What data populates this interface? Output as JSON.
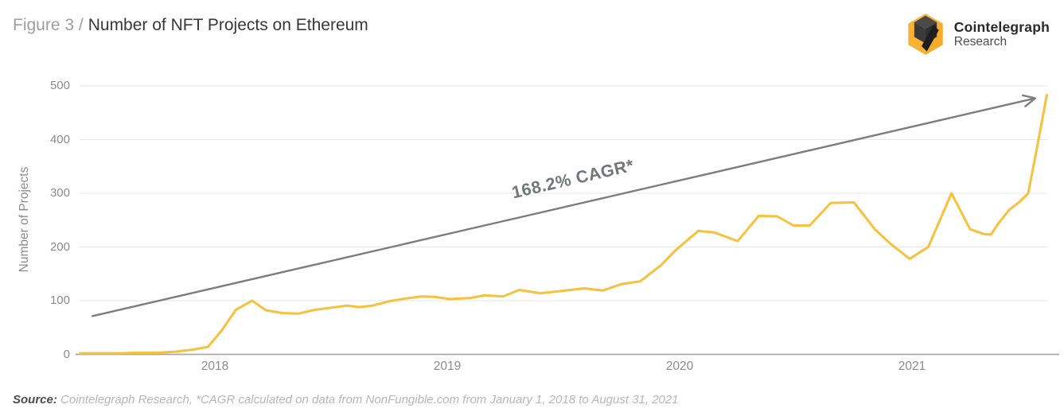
{
  "header": {
    "figure_label": "Figure 3 /",
    "title": "Number of NFT Projects on Ethereum",
    "logo": {
      "brand": "Cointelegraph",
      "sub": "Research"
    }
  },
  "chart_data": {
    "type": "line",
    "title": "Number of NFT Projects on Ethereum",
    "xlabel": "",
    "ylabel": "Number of Projects",
    "ylim": [
      0,
      500
    ],
    "y_ticks": [
      0,
      100,
      200,
      300,
      400,
      500
    ],
    "x_ticks": [
      2018,
      2019,
      2020,
      2021
    ],
    "grid": true,
    "legend": "none",
    "colors": {
      "grid": "#e7e7e7",
      "axis": "#a8a8a8",
      "tick_text": "#8b8b8b"
    },
    "series": [
      {
        "name": "Number of NFT Projects on Ethereum",
        "color": "#F6C13D",
        "points": [
          [
            2017.42,
            2
          ],
          [
            2017.5,
            2
          ],
          [
            2017.58,
            2
          ],
          [
            2017.66,
            3
          ],
          [
            2017.75,
            3
          ],
          [
            2017.83,
            5
          ],
          [
            2017.91,
            9
          ],
          [
            2017.97,
            14
          ],
          [
            2018.03,
            45
          ],
          [
            2018.09,
            83
          ],
          [
            2018.16,
            100
          ],
          [
            2018.22,
            82
          ],
          [
            2018.29,
            77
          ],
          [
            2018.36,
            76
          ],
          [
            2018.43,
            83
          ],
          [
            2018.5,
            87
          ],
          [
            2018.57,
            91
          ],
          [
            2018.62,
            88
          ],
          [
            2018.68,
            91
          ],
          [
            2018.75,
            99
          ],
          [
            2018.82,
            104
          ],
          [
            2018.89,
            108
          ],
          [
            2018.95,
            107
          ],
          [
            2019.01,
            103
          ],
          [
            2019.1,
            105
          ],
          [
            2019.16,
            110
          ],
          [
            2019.24,
            108
          ],
          [
            2019.31,
            120
          ],
          [
            2019.4,
            114
          ],
          [
            2019.47,
            117
          ],
          [
            2019.59,
            123
          ],
          [
            2019.67,
            119
          ],
          [
            2019.75,
            131
          ],
          [
            2019.83,
            136
          ],
          [
            2019.92,
            166
          ],
          [
            2019.98,
            193
          ],
          [
            2020.08,
            230
          ],
          [
            2020.15,
            227
          ],
          [
            2020.25,
            211
          ],
          [
            2020.34,
            258
          ],
          [
            2020.42,
            257
          ],
          [
            2020.49,
            240
          ],
          [
            2020.56,
            240
          ],
          [
            2020.65,
            282
          ],
          [
            2020.75,
            283
          ],
          [
            2020.84,
            233
          ],
          [
            2020.91,
            205
          ],
          [
            2020.99,
            178
          ],
          [
            2021.07,
            200
          ],
          [
            2021.17,
            300
          ],
          [
            2021.25,
            233
          ],
          [
            2021.31,
            224
          ],
          [
            2021.34,
            223
          ],
          [
            2021.37,
            243
          ],
          [
            2021.42,
            270
          ],
          [
            2021.46,
            283
          ],
          [
            2021.5,
            300
          ],
          [
            2021.54,
            390
          ],
          [
            2021.58,
            483
          ]
        ]
      }
    ],
    "trend": {
      "label": "168.2% CAGR*",
      "color": "#7d7d7d",
      "start": [
        2017.47,
        71
      ],
      "end": [
        2021.53,
        477
      ]
    }
  },
  "footer": {
    "source_bold": "Source:",
    "source_rest": " Cointelegraph Research, *CAGR calculated on data from NonFungible.com from January 1, 2018 to August 31, 2021"
  }
}
